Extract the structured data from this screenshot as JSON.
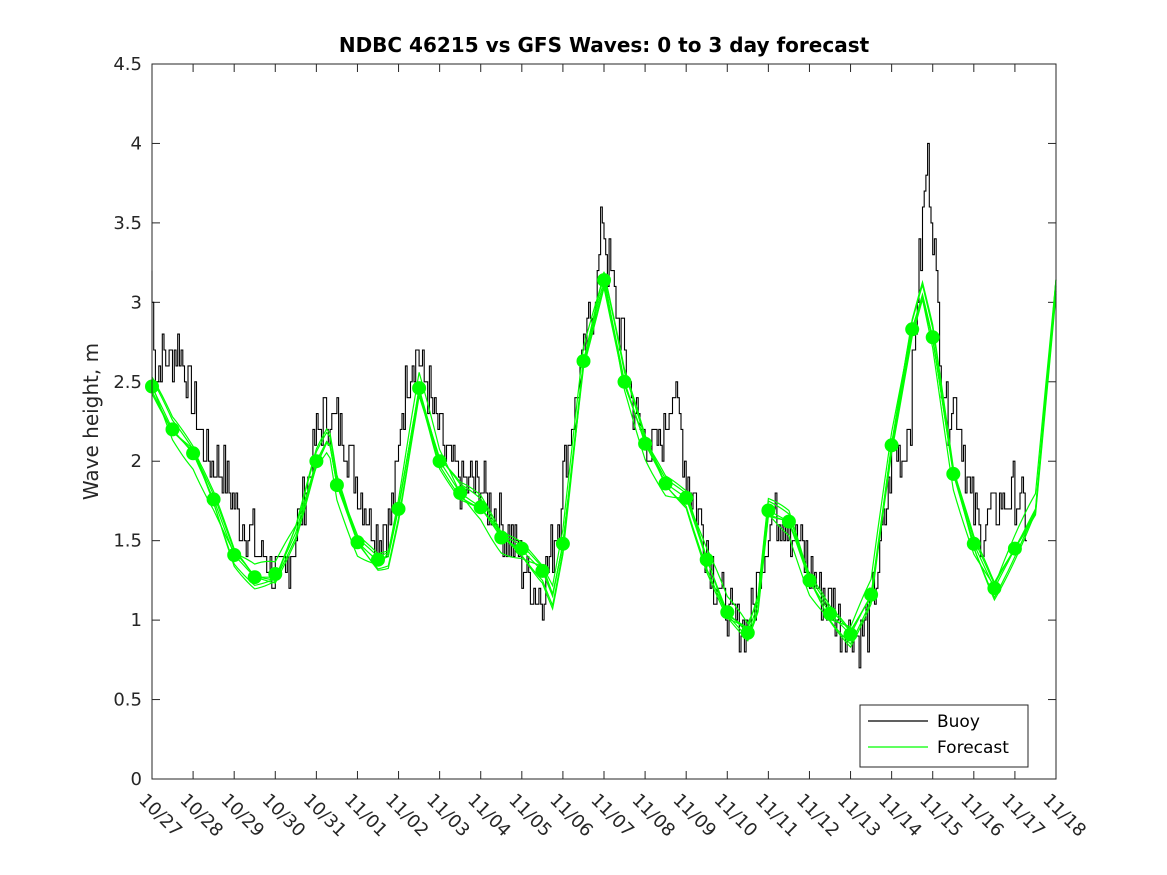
{
  "chart_data": {
    "type": "line",
    "title": "NDBC 46215 vs GFS Waves: 0 to 3 day forecast",
    "xlabel": "",
    "ylabel": "Wave height, m",
    "x_day_range": [
      0,
      22
    ],
    "ylim": [
      0,
      4.5
    ],
    "y_ticks": [
      0,
      0.5,
      1,
      1.5,
      2,
      2.5,
      3,
      3.5,
      4,
      4.5
    ],
    "y_tick_labels": [
      "0",
      "0.5",
      "1",
      "1.5",
      "2",
      "2.5",
      "3",
      "3.5",
      "4",
      "4.5"
    ],
    "x_ticks": [
      0,
      1,
      2,
      3,
      4,
      5,
      6,
      7,
      8,
      9,
      10,
      11,
      12,
      13,
      14,
      15,
      16,
      17,
      18,
      19,
      20,
      21,
      22
    ],
    "x_tick_labels": [
      "10/27",
      "10/28",
      "10/29",
      "10/30",
      "10/31",
      "11/01",
      "11/02",
      "11/03",
      "11/04",
      "11/05",
      "11/06",
      "11/07",
      "11/08",
      "11/09",
      "11/10",
      "11/11",
      "11/12",
      "11/13",
      "11/14",
      "11/15",
      "11/16",
      "11/17",
      "11/18"
    ],
    "grid": false,
    "legend": {
      "position": "bottom-right",
      "entries": [
        "Buoy",
        "Forecast"
      ]
    },
    "series": [
      {
        "name": "Buoy",
        "color": "#000000",
        "note": "key values; plot adds small hourly jitter",
        "points": [
          [
            0.0,
            3.2
          ],
          [
            0.15,
            2.5
          ],
          [
            0.3,
            2.7
          ],
          [
            0.5,
            2.6
          ],
          [
            0.7,
            2.75
          ],
          [
            0.9,
            2.5
          ],
          [
            1.1,
            2.3
          ],
          [
            1.3,
            2.1
          ],
          [
            1.5,
            2.0
          ],
          [
            1.7,
            1.95
          ],
          [
            1.9,
            1.85
          ],
          [
            2.1,
            1.65
          ],
          [
            2.3,
            1.6
          ],
          [
            2.5,
            1.5
          ],
          [
            2.7,
            1.4
          ],
          [
            2.9,
            1.35
          ],
          [
            3.0,
            1.3
          ],
          [
            3.1,
            1.25
          ],
          [
            3.3,
            1.3
          ],
          [
            3.5,
            1.5
          ],
          [
            3.7,
            1.75
          ],
          [
            3.9,
            2.0
          ],
          [
            4.1,
            2.2
          ],
          [
            4.3,
            2.3
          ],
          [
            4.5,
            2.25
          ],
          [
            4.7,
            2.2
          ],
          [
            4.9,
            2.0
          ],
          [
            5.1,
            1.8
          ],
          [
            5.3,
            1.65
          ],
          [
            5.5,
            1.55
          ],
          [
            5.7,
            1.6
          ],
          [
            5.9,
            1.7
          ],
          [
            6.0,
            1.95
          ],
          [
            6.1,
            2.3
          ],
          [
            6.3,
            2.6
          ],
          [
            6.5,
            2.7
          ],
          [
            6.7,
            2.5
          ],
          [
            6.9,
            2.3
          ],
          [
            7.1,
            2.1
          ],
          [
            7.3,
            1.95
          ],
          [
            7.5,
            1.9
          ],
          [
            7.7,
            1.85
          ],
          [
            7.9,
            1.85
          ],
          [
            8.1,
            1.8
          ],
          [
            8.3,
            1.75
          ],
          [
            8.5,
            1.6
          ],
          [
            8.7,
            1.55
          ],
          [
            8.9,
            1.45
          ],
          [
            9.1,
            1.3
          ],
          [
            9.3,
            1.2
          ],
          [
            9.5,
            1.15
          ],
          [
            9.7,
            1.35
          ],
          [
            9.9,
            1.6
          ],
          [
            10.1,
            2.0
          ],
          [
            10.3,
            2.3
          ],
          [
            10.5,
            2.6
          ],
          [
            10.7,
            2.9
          ],
          [
            10.9,
            3.2
          ],
          [
            11.0,
            3.6
          ],
          [
            11.1,
            3.3
          ],
          [
            11.3,
            3.0
          ],
          [
            11.5,
            2.75
          ],
          [
            11.7,
            2.4
          ],
          [
            11.9,
            2.2
          ],
          [
            12.1,
            2.1
          ],
          [
            12.3,
            2.05
          ],
          [
            12.5,
            2.2
          ],
          [
            12.7,
            2.5
          ],
          [
            12.9,
            2.2
          ],
          [
            13.1,
            1.85
          ],
          [
            13.3,
            1.7
          ],
          [
            13.5,
            1.5
          ],
          [
            13.7,
            1.3
          ],
          [
            13.9,
            1.15
          ],
          [
            14.1,
            1.0
          ],
          [
            14.3,
            0.95
          ],
          [
            14.5,
            0.92
          ],
          [
            14.7,
            1.1
          ],
          [
            14.9,
            1.45
          ],
          [
            15.1,
            1.65
          ],
          [
            15.3,
            1.7
          ],
          [
            15.5,
            1.65
          ],
          [
            15.7,
            1.5
          ],
          [
            15.9,
            1.4
          ],
          [
            16.1,
            1.3
          ],
          [
            16.3,
            1.2
          ],
          [
            16.5,
            1.1
          ],
          [
            16.7,
            1.05
          ],
          [
            16.9,
            0.95
          ],
          [
            17.1,
            0.92
          ],
          [
            17.3,
            0.9
          ],
          [
            17.5,
            1.0
          ],
          [
            17.7,
            1.3
          ],
          [
            17.9,
            1.7
          ],
          [
            18.1,
            2.1
          ],
          [
            18.3,
            2.05
          ],
          [
            18.5,
            2.3
          ],
          [
            18.65,
            3.0
          ],
          [
            18.8,
            3.5
          ],
          [
            18.9,
            3.9
          ],
          [
            19.0,
            3.6
          ],
          [
            19.1,
            3.2
          ],
          [
            19.25,
            2.6
          ],
          [
            19.4,
            2.3
          ],
          [
            19.6,
            2.4
          ],
          [
            19.8,
            2.05
          ],
          [
            20.0,
            1.7
          ],
          [
            20.2,
            1.55
          ],
          [
            20.4,
            1.65
          ],
          [
            20.6,
            1.7
          ],
          [
            20.8,
            1.75
          ],
          [
            21.0,
            1.8
          ],
          [
            21.2,
            1.7
          ],
          [
            21.3,
            1.65
          ]
        ]
      },
      {
        "name": "Forecast",
        "color": "#00ff00",
        "note": "representative forecast run; plot adds several similar runs",
        "points": [
          [
            0.0,
            2.47
          ],
          [
            0.5,
            2.2
          ],
          [
            1.0,
            2.05
          ],
          [
            1.5,
            1.76
          ],
          [
            2.0,
            1.41
          ],
          [
            2.5,
            1.27
          ],
          [
            3.0,
            1.27
          ],
          [
            3.5,
            1.55
          ],
          [
            4.0,
            2.0
          ],
          [
            4.3,
            2.15
          ],
          [
            4.5,
            1.85
          ],
          [
            5.0,
            1.49
          ],
          [
            5.5,
            1.37
          ],
          [
            5.75,
            1.4
          ],
          [
            6.0,
            1.7
          ],
          [
            6.5,
            2.46
          ],
          [
            7.0,
            2.0
          ],
          [
            7.5,
            1.8
          ],
          [
            8.0,
            1.71
          ],
          [
            8.5,
            1.52
          ],
          [
            9.0,
            1.44
          ],
          [
            9.5,
            1.31
          ],
          [
            9.75,
            1.15
          ],
          [
            10.0,
            1.48
          ],
          [
            10.5,
            2.63
          ],
          [
            11.0,
            3.14
          ],
          [
            11.5,
            2.5
          ],
          [
            12.0,
            2.11
          ],
          [
            12.5,
            1.86
          ],
          [
            13.0,
            1.77
          ],
          [
            13.5,
            1.38
          ],
          [
            14.0,
            1.05
          ],
          [
            14.5,
            0.92
          ],
          [
            14.75,
            1.1
          ],
          [
            15.0,
            1.69
          ],
          [
            15.5,
            1.62
          ],
          [
            16.0,
            1.25
          ],
          [
            16.5,
            1.04
          ],
          [
            17.0,
            0.91
          ],
          [
            17.5,
            1.16
          ],
          [
            18.0,
            2.1
          ],
          [
            18.5,
            2.83
          ],
          [
            18.75,
            3.05
          ],
          [
            19.0,
            2.78
          ],
          [
            19.5,
            1.92
          ],
          [
            20.0,
            1.48
          ],
          [
            20.5,
            1.2
          ],
          [
            21.0,
            1.45
          ],
          [
            21.5,
            1.7
          ],
          [
            22.0,
            3.1
          ]
        ]
      }
    ],
    "forecast_markers": [
      [
        0.0,
        2.47
      ],
      [
        0.5,
        2.2
      ],
      [
        1.0,
        2.05
      ],
      [
        1.5,
        1.76
      ],
      [
        2.0,
        1.41
      ],
      [
        2.5,
        1.27
      ],
      [
        3.0,
        1.29
      ],
      [
        4.0,
        2.0
      ],
      [
        4.5,
        1.85
      ],
      [
        5.0,
        1.49
      ],
      [
        5.5,
        1.38
      ],
      [
        6.0,
        1.7
      ],
      [
        6.5,
        2.46
      ],
      [
        7.0,
        2.0
      ],
      [
        7.5,
        1.8
      ],
      [
        8.0,
        1.71
      ],
      [
        8.5,
        1.52
      ],
      [
        9.0,
        1.45
      ],
      [
        9.5,
        1.31
      ],
      [
        10.0,
        1.48
      ],
      [
        10.5,
        2.63
      ],
      [
        11.0,
        3.14
      ],
      [
        11.5,
        2.5
      ],
      [
        12.0,
        2.11
      ],
      [
        12.5,
        1.86
      ],
      [
        13.0,
        1.77
      ],
      [
        13.5,
        1.38
      ],
      [
        14.0,
        1.05
      ],
      [
        14.5,
        0.92
      ],
      [
        15.0,
        1.69
      ],
      [
        15.5,
        1.62
      ],
      [
        16.0,
        1.25
      ],
      [
        16.5,
        1.04
      ],
      [
        17.0,
        0.91
      ],
      [
        17.5,
        1.16
      ],
      [
        18.0,
        2.1
      ],
      [
        18.5,
        2.83
      ],
      [
        19.0,
        2.78
      ],
      [
        19.5,
        1.92
      ],
      [
        20.0,
        1.48
      ],
      [
        20.5,
        1.2
      ],
      [
        21.0,
        1.45
      ]
    ]
  }
}
